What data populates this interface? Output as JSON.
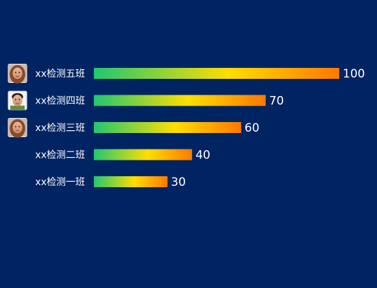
{
  "chart_data": {
    "type": "bar",
    "orientation": "horizontal",
    "categories": [
      "xx检测五班",
      "xx检测四班",
      "xx检测三班",
      "xx检测二班",
      "xx检测一班"
    ],
    "values": [
      100,
      70,
      60,
      40,
      30
    ],
    "xlim": [
      0,
      100
    ],
    "grid": false,
    "legend": "none",
    "avatars": [
      {
        "category": "xx检测五班",
        "icon": "avatar-female-photo-icon"
      },
      {
        "category": "xx检测四班",
        "icon": "avatar-male-photo-icon"
      },
      {
        "category": "xx检测三班",
        "icon": "avatar-female-photo-icon"
      }
    ],
    "colors": {
      "background": "#002462",
      "gradient_start": "#20c870",
      "gradient_mid": "#ffde00",
      "gradient_end": "#ff7800",
      "text": "#ffffff"
    }
  }
}
